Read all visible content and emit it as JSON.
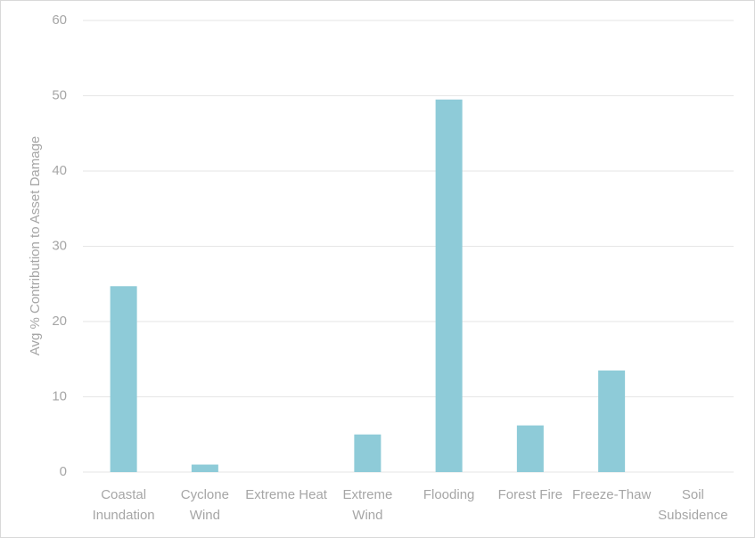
{
  "chart_data": {
    "type": "bar",
    "y_label": "Avg % Contribution to Asset Damage",
    "categories": [
      "Coastal\nInundation",
      "Cyclone\nWind",
      "Extreme Heat",
      "Extreme\nWind",
      "Flooding",
      "Forest Fire",
      "Freeze-Thaw",
      "Soil\nSubsidence"
    ],
    "values": [
      24.7,
      1.0,
      0,
      5.0,
      49.5,
      6.2,
      13.5,
      0
    ],
    "color": "#8ecbd8",
    "ylim": [
      0,
      60
    ],
    "yticks": [
      0,
      10,
      20,
      30,
      40,
      50,
      60
    ],
    "grid": true
  }
}
